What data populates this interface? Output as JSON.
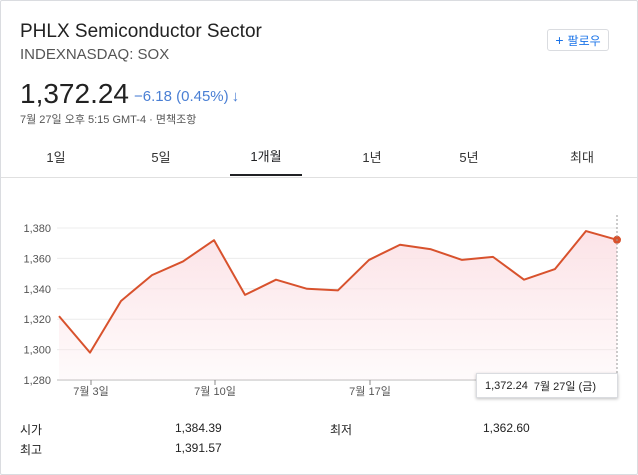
{
  "header": {
    "title": "PHLX Semiconductor Sector",
    "subtitle": "INDEXNASDAQ: SOX",
    "follow_label": "팔로우",
    "follow_plus": "+"
  },
  "quote": {
    "price": "1,372.24",
    "change": "−6.18 (0.45%)",
    "change_arrow": "↓",
    "timestamp": "7월 27일 오후 5:15 GMT-4 · 면책조항"
  },
  "tabs": [
    {
      "label": "1일"
    },
    {
      "label": "5일"
    },
    {
      "label": "1개월",
      "active": true
    },
    {
      "label": "1년"
    },
    {
      "label": "5년"
    },
    {
      "label": "최대"
    }
  ],
  "tooltip": {
    "value": "1,372.24",
    "date": "7월 27일 (금)"
  },
  "stats": [
    {
      "label": "시가",
      "value": "1,384.39"
    },
    {
      "label": "최저",
      "value": "1,362.60"
    },
    {
      "label": "최고",
      "value": "1,391.57"
    }
  ],
  "colors": {
    "line": "#d8522d",
    "fill": "#fce3e7",
    "change": "#4a7fd4",
    "tab_active": "#202124"
  },
  "chart_data": {
    "type": "line",
    "series": [
      {
        "values": [
          1322,
          1298,
          1332,
          1349,
          1358,
          1372,
          1336,
          1346,
          1340,
          1339,
          1359,
          1369,
          1366,
          1359,
          1361,
          1346,
          1353,
          1378,
          1372.24
        ]
      }
    ],
    "x_labels": [
      "7월 3일",
      "7월 10일",
      "7월 17일"
    ],
    "x_label_indices": [
      1,
      5,
      10
    ],
    "y_ticks": [
      "1,380",
      "1,360",
      "1,340",
      "1,320",
      "1,300",
      "1,280"
    ],
    "y_tick_values": [
      1380,
      1360,
      1340,
      1320,
      1300,
      1280
    ],
    "ylim": [
      1280,
      1380
    ],
    "grid": true
  }
}
